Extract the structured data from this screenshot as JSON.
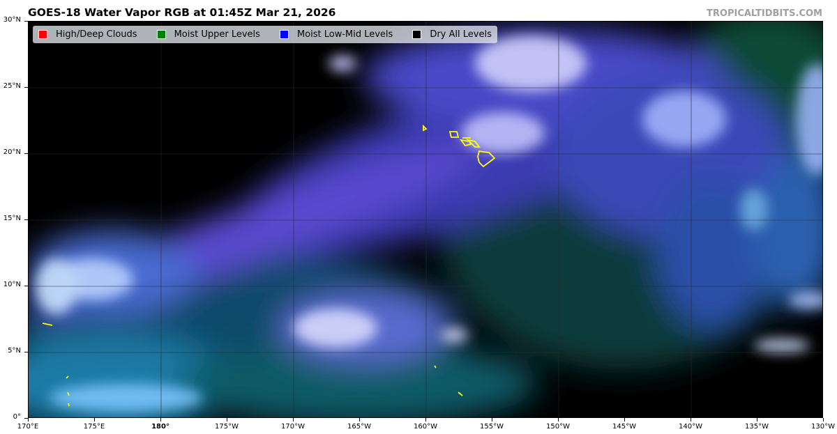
{
  "header": {
    "title": "GOES-18 Water Vapor RGB at 01:45Z Mar 21, 2026",
    "credit": "TROPICALTIDBITS.COM"
  },
  "legend": [
    {
      "label": "High/Deep Clouds",
      "color": "#ff0000"
    },
    {
      "label": "Moist Upper Levels",
      "color": "#008000"
    },
    {
      "label": "Moist Low-Mid Levels",
      "color": "#0000ff"
    },
    {
      "label": "Dry All Levels",
      "color": "#000000"
    }
  ],
  "axes": {
    "lat_ticks": [
      "30°N",
      "25°N",
      "20°N",
      "15°N",
      "10°N",
      "5°N",
      "0°"
    ],
    "lon_ticks": [
      "170°E",
      "175°E",
      "180°",
      "175°W",
      "170°W",
      "165°W",
      "160°W",
      "155°W",
      "150°W",
      "145°W",
      "140°W",
      "135°W",
      "130°W"
    ],
    "lat_range": [
      0,
      30
    ],
    "lon_range": [
      "170°E",
      "130°W"
    ]
  },
  "colors": {
    "coastline": "#ffff00",
    "background": "#000000"
  }
}
